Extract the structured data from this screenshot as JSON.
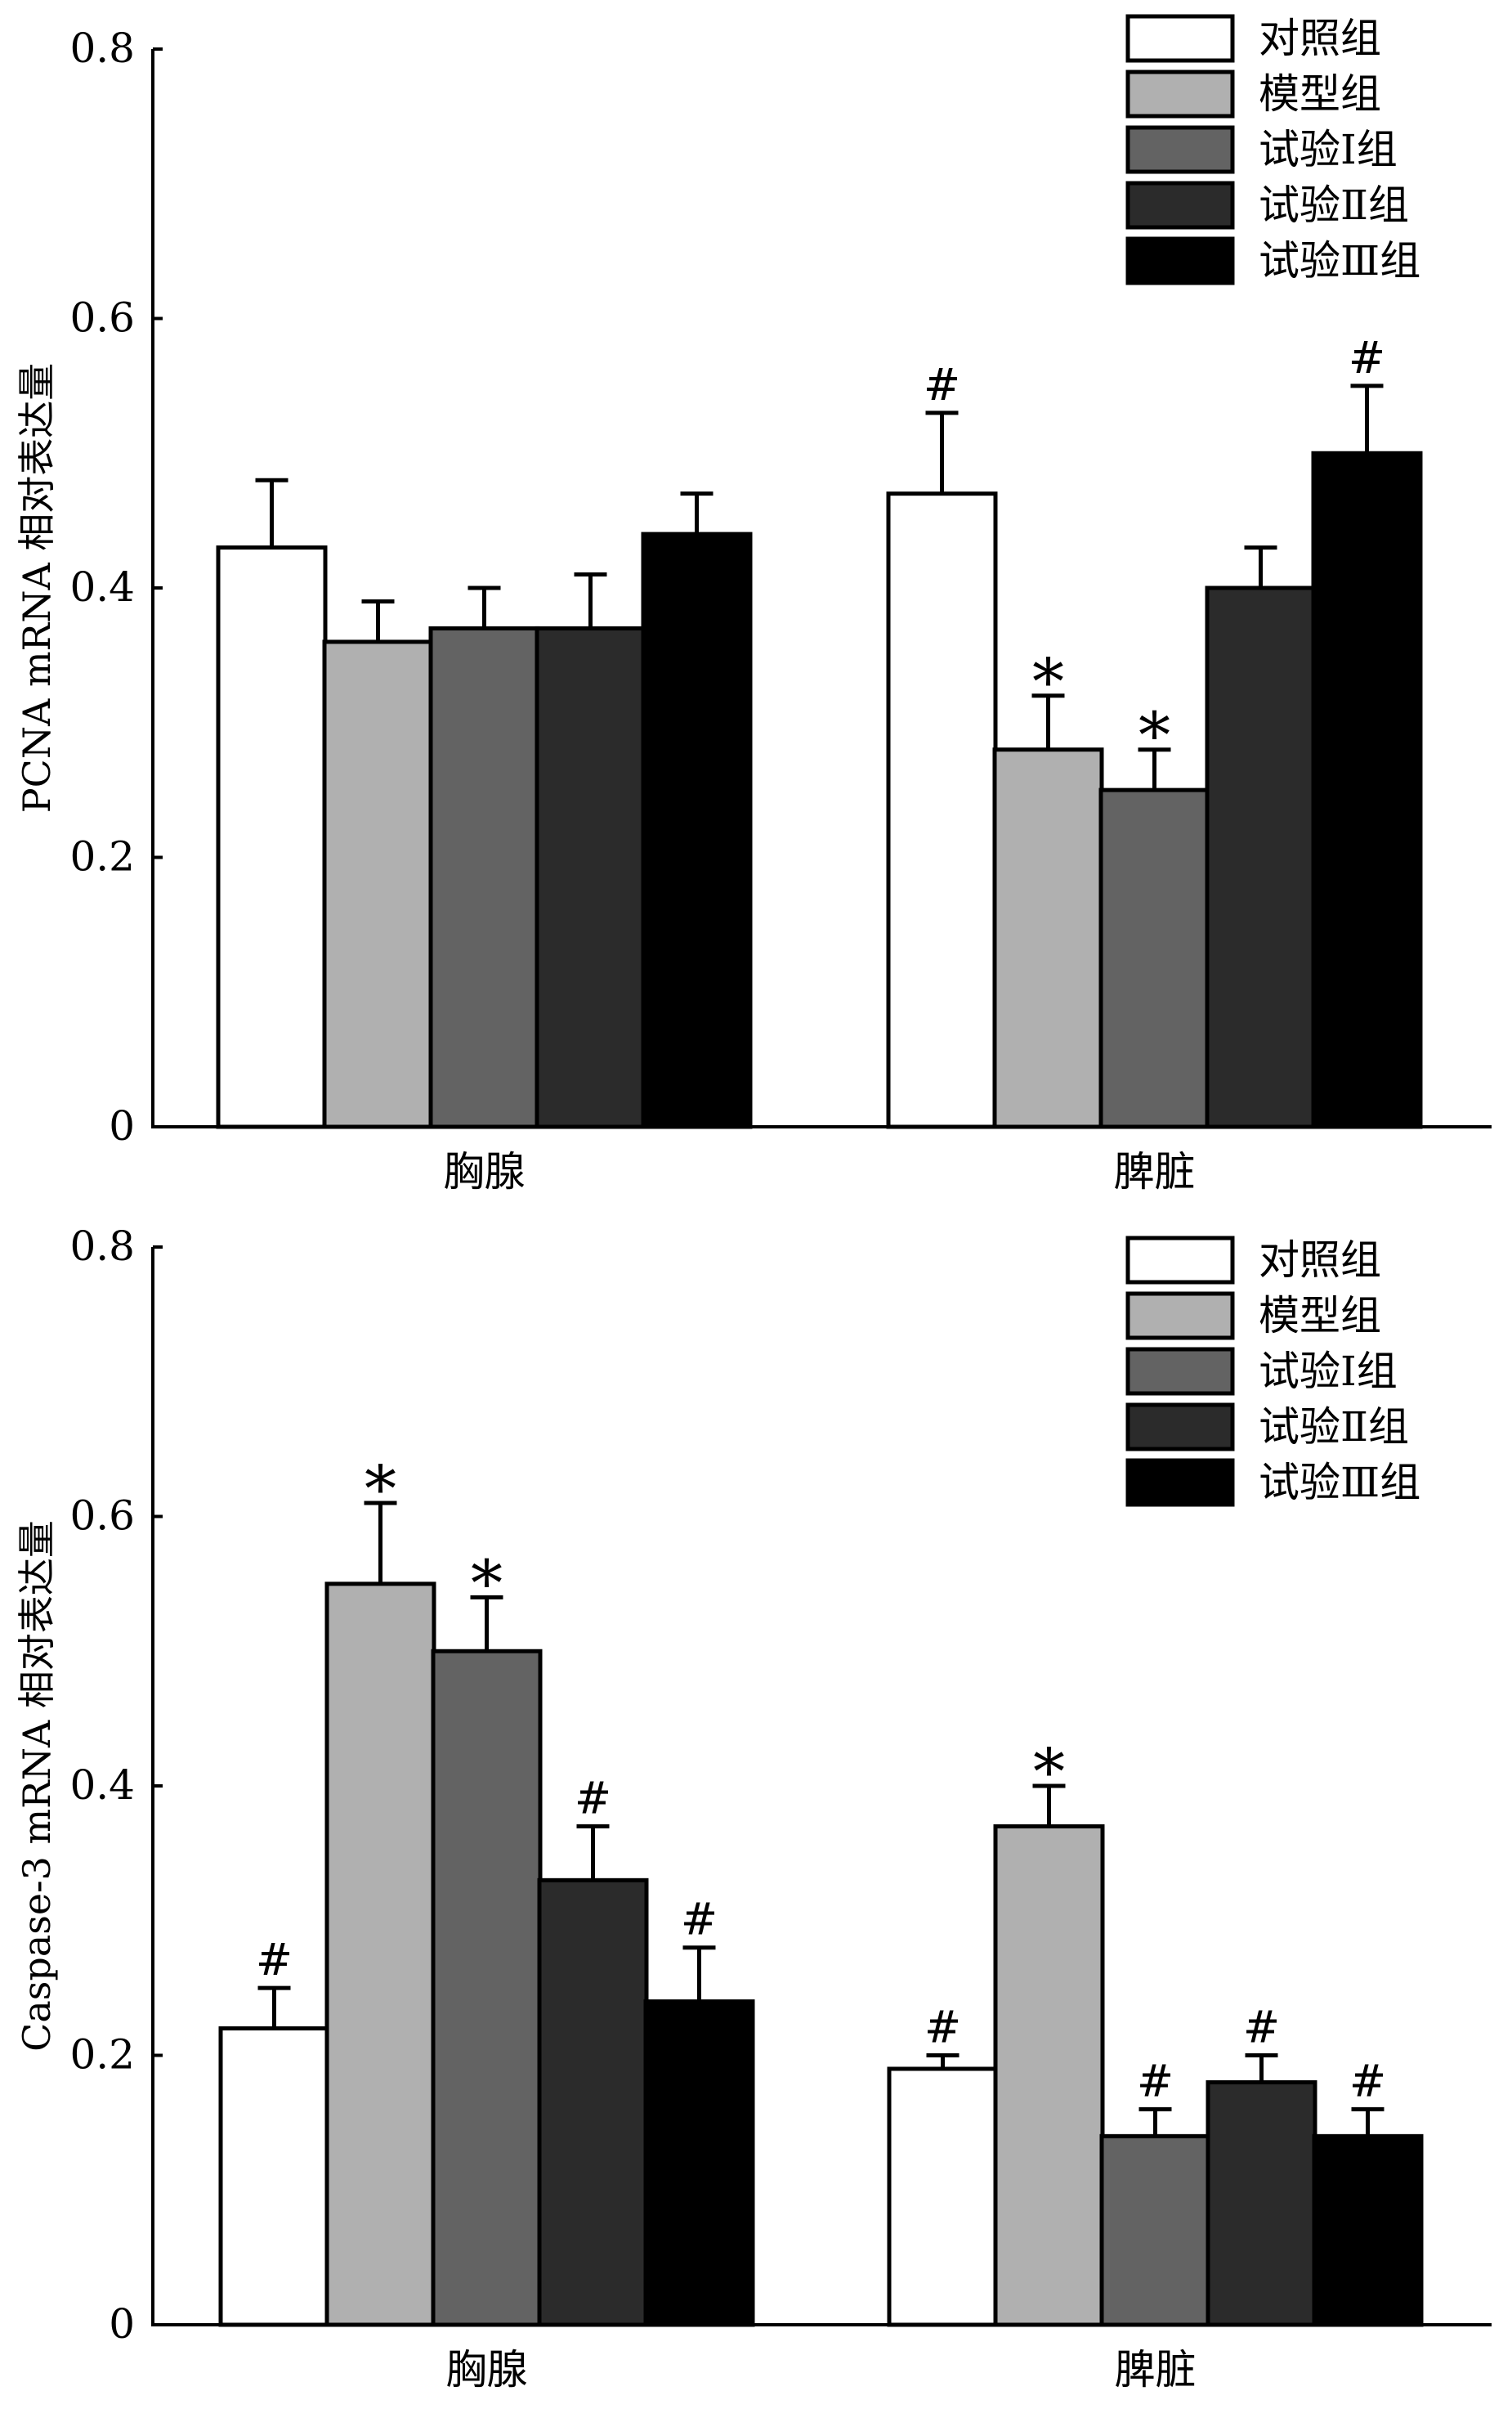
{
  "chart_data": [
    {
      "type": "bar",
      "ylabel": "PCNA mRNA 相对表达量",
      "xlabel": "",
      "ylim": [
        0,
        0.8
      ],
      "yticks": [
        "0",
        "0.2",
        "0.4",
        "0.6",
        "0.8"
      ],
      "categories": [
        "胸腺",
        "脾脏"
      ],
      "legend_position": "top-right",
      "series": [
        {
          "name": "对照组",
          "color": "#ffffff",
          "values": [
            0.43,
            0.47
          ],
          "errors": [
            0.05,
            0.06
          ],
          "marks": [
            "",
            "#"
          ]
        },
        {
          "name": "模型组",
          "color": "#b0b0b0",
          "values": [
            0.36,
            0.28
          ],
          "errors": [
            0.03,
            0.04
          ],
          "marks": [
            "",
            "*"
          ]
        },
        {
          "name": "试验Ⅰ组",
          "color": "#636363",
          "values": [
            0.37,
            0.25
          ],
          "errors": [
            0.03,
            0.03
          ],
          "marks": [
            "",
            "*"
          ]
        },
        {
          "name": "试验Ⅱ组",
          "color": "#2b2b2b",
          "values": [
            0.37,
            0.4
          ],
          "errors": [
            0.04,
            0.03
          ],
          "marks": [
            "",
            ""
          ]
        },
        {
          "name": "试验Ⅲ组",
          "color": "#000000",
          "values": [
            0.44,
            0.5
          ],
          "errors": [
            0.03,
            0.05
          ],
          "marks": [
            "",
            "#"
          ]
        }
      ]
    },
    {
      "type": "bar",
      "ylabel": "Caspase-3 mRNA 相对表达量",
      "xlabel": "",
      "ylim": [
        0,
        0.8
      ],
      "yticks": [
        "0",
        "0.2",
        "0.4",
        "0.6",
        "0.8"
      ],
      "categories": [
        "胸腺",
        "脾脏"
      ],
      "legend_position": "top-right",
      "series": [
        {
          "name": "对照组",
          "color": "#ffffff",
          "values": [
            0.22,
            0.19
          ],
          "errors": [
            0.03,
            0.01
          ],
          "marks": [
            "#",
            "#"
          ]
        },
        {
          "name": "模型组",
          "color": "#b0b0b0",
          "values": [
            0.55,
            0.37
          ],
          "errors": [
            0.06,
            0.03
          ],
          "marks": [
            "*",
            "*"
          ]
        },
        {
          "name": "试验Ⅰ组",
          "color": "#636363",
          "values": [
            0.5,
            0.14
          ],
          "errors": [
            0.04,
            0.02
          ],
          "marks": [
            "*",
            "#"
          ]
        },
        {
          "name": "试验Ⅱ组",
          "color": "#2b2b2b",
          "values": [
            0.33,
            0.18
          ],
          "errors": [
            0.04,
            0.02
          ],
          "marks": [
            "#",
            "#"
          ]
        },
        {
          "name": "试验Ⅲ组",
          "color": "#000000",
          "values": [
            0.24,
            0.14
          ],
          "errors": [
            0.04,
            0.02
          ],
          "marks": [
            "#",
            "#"
          ]
        }
      ]
    }
  ]
}
